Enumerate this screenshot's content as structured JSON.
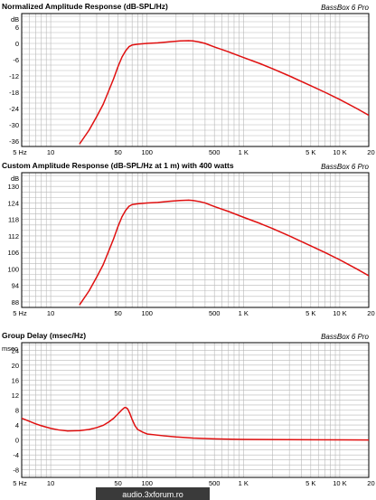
{
  "watermark": "audio.3xforum.ro",
  "colors": {
    "curve": "#e01010",
    "grid": "#b8b8b8",
    "frame": "#000000",
    "background": "#ffffff"
  },
  "chart_data": [
    {
      "type": "line",
      "title": "Normalized Amplitude Response (dB-SPL/Hz)",
      "brand": "BassBox 6 Pro",
      "unit_label": "dB",
      "x_scale": "log",
      "xlim": [
        5,
        20000
      ],
      "ylim": [
        -38,
        11
      ],
      "x_ticks": [
        {
          "value": 5,
          "label": "5 Hz"
        },
        {
          "value": 10,
          "label": "10"
        },
        {
          "value": 50,
          "label": "50"
        },
        {
          "value": 100,
          "label": "100"
        },
        {
          "value": 500,
          "label": "500"
        },
        {
          "value": 1000,
          "label": "1 K"
        },
        {
          "value": 5000,
          "label": "5 K"
        },
        {
          "value": 10000,
          "label": "10 K"
        },
        {
          "value": 20000,
          "label": "20 K"
        }
      ],
      "y_ticks": [
        {
          "value": 6,
          "label": "6"
        },
        {
          "value": 0,
          "label": "0"
        },
        {
          "value": -6,
          "label": "-6"
        },
        {
          "value": -12,
          "label": "-12"
        },
        {
          "value": -18,
          "label": "-18"
        },
        {
          "value": -24,
          "label": "-24"
        },
        {
          "value": -30,
          "label": "-30"
        },
        {
          "value": -36,
          "label": "-36"
        }
      ],
      "grid": true,
      "series": [
        {
          "x": [
            20,
            25,
            30,
            35,
            40,
            45,
            50,
            55,
            60,
            65,
            70,
            80,
            100,
            130,
            170,
            220,
            270,
            300,
            350,
            400,
            500,
            700,
            1000,
            1500,
            2000,
            3000,
            5000,
            7000,
            10000,
            15000,
            20000
          ],
          "y": [
            -37,
            -32,
            -27,
            -22.5,
            -17.5,
            -13,
            -8.5,
            -5,
            -2.7,
            -1.2,
            -0.6,
            -0.3,
            0,
            0.2,
            0.6,
            0.9,
            1,
            0.9,
            0.5,
            0,
            -1.3,
            -3.1,
            -5.2,
            -7.5,
            -9.3,
            -12,
            -15.6,
            -18,
            -20.7,
            -24,
            -26.5
          ]
        }
      ]
    },
    {
      "type": "line",
      "title": "Custom Amplitude Response (dB-SPL/Hz at 1 m) with 400 watts",
      "brand": "BassBox 6 Pro",
      "unit_label": "dB",
      "x_scale": "log",
      "xlim": [
        5,
        20000
      ],
      "ylim": [
        86,
        135
      ],
      "x_ticks": [
        {
          "value": 5,
          "label": "5 Hz"
        },
        {
          "value": 10,
          "label": "10"
        },
        {
          "value": 50,
          "label": "50"
        },
        {
          "value": 100,
          "label": "100"
        },
        {
          "value": 500,
          "label": "500"
        },
        {
          "value": 1000,
          "label": "1 K"
        },
        {
          "value": 5000,
          "label": "5 K"
        },
        {
          "value": 10000,
          "label": "10 K"
        },
        {
          "value": 20000,
          "label": "20 K"
        }
      ],
      "y_ticks": [
        {
          "value": 130,
          "label": "130"
        },
        {
          "value": 124,
          "label": "124"
        },
        {
          "value": 118,
          "label": "118"
        },
        {
          "value": 112,
          "label": "112"
        },
        {
          "value": 106,
          "label": "106"
        },
        {
          "value": 100,
          "label": "100"
        },
        {
          "value": 94,
          "label": "94"
        },
        {
          "value": 88,
          "label": "88"
        }
      ],
      "grid": true,
      "series": [
        {
          "x": [
            20,
            25,
            30,
            35,
            40,
            45,
            50,
            55,
            60,
            65,
            70,
            80,
            100,
            130,
            170,
            220,
            270,
            300,
            350,
            400,
            500,
            700,
            1000,
            1500,
            2000,
            3000,
            5000,
            7000,
            10000,
            15000,
            20000
          ],
          "y": [
            87,
            92,
            97,
            101.5,
            106.5,
            111,
            115.5,
            119,
            121.3,
            122.8,
            123.4,
            123.7,
            124,
            124.2,
            124.6,
            124.9,
            125,
            124.9,
            124.5,
            124,
            122.7,
            120.9,
            118.8,
            116.5,
            114.7,
            112,
            108.4,
            106,
            103.3,
            100,
            97.5
          ]
        }
      ]
    },
    {
      "type": "line",
      "title": "Group Delay (msec/Hz)",
      "brand": "BassBox 6 Pro",
      "unit_label": "msec",
      "x_scale": "log",
      "xlim": [
        5,
        20000
      ],
      "ylim": [
        -10,
        26
      ],
      "x_ticks": [
        {
          "value": 5,
          "label": "5 Hz"
        },
        {
          "value": 10,
          "label": "10"
        },
        {
          "value": 50,
          "label": "50"
        },
        {
          "value": 100,
          "label": "100"
        },
        {
          "value": 500,
          "label": "500"
        },
        {
          "value": 1000,
          "label": "1 K"
        },
        {
          "value": 5000,
          "label": "5 K"
        },
        {
          "value": 10000,
          "label": "10 K"
        },
        {
          "value": 20000,
          "label": "20 K"
        }
      ],
      "y_ticks": [
        {
          "value": 24,
          "label": "24"
        },
        {
          "value": 20,
          "label": "20"
        },
        {
          "value": 16,
          "label": "16"
        },
        {
          "value": 12,
          "label": "12"
        },
        {
          "value": 8,
          "label": "8"
        },
        {
          "value": 4,
          "label": "4"
        },
        {
          "value": 0,
          "label": "0"
        },
        {
          "value": -4,
          "label": "-4"
        },
        {
          "value": -8,
          "label": "-8"
        }
      ],
      "grid": true,
      "series": [
        {
          "x": [
            5,
            6,
            7,
            8,
            10,
            12,
            15,
            20,
            25,
            30,
            35,
            40,
            45,
            50,
            55,
            58,
            60,
            63,
            66,
            70,
            75,
            80,
            90,
            100,
            150,
            200,
            300,
            500,
            1000,
            5000,
            20000
          ],
          "y": [
            5.8,
            5,
            4.3,
            3.8,
            3.1,
            2.7,
            2.4,
            2.5,
            2.8,
            3.3,
            3.9,
            4.8,
            5.8,
            7,
            8.1,
            8.6,
            8.7,
            8.3,
            7.2,
            5.5,
            3.8,
            2.8,
            2.1,
            1.6,
            1.1,
            0.8,
            0.5,
            0.3,
            0.15,
            0.05,
            0
          ]
        }
      ]
    }
  ]
}
